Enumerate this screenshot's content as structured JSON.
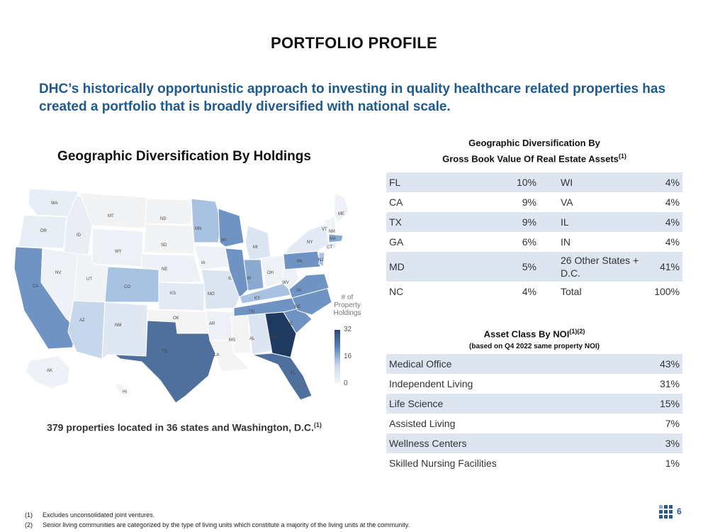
{
  "title": "PORTFOLIO PROFILE",
  "subtitle": "DHC’s historically opportunistic approach to investing in quality healthcare related properties has created a portfolio that is broadly diversified with national scale.",
  "map": {
    "title": "Geographic Diversification By Holdings",
    "caption": "379 properties located in 36 states and Washington, D.C.",
    "caption_note": "(1)",
    "legend": {
      "title_lines": [
        "# of",
        "Property",
        "Holdings"
      ],
      "ticks": [
        "32",
        "16",
        "0"
      ]
    },
    "state_labels": [
      "WA",
      "OR",
      "ID",
      "MT",
      "ND",
      "SD",
      "WY",
      "NE",
      "NV",
      "UT",
      "CO",
      "KS",
      "CA",
      "AZ",
      "NM",
      "OK",
      "TX",
      "MN",
      "IA",
      "MO",
      "AR",
      "LA",
      "WI",
      "IL",
      "MI",
      "IN",
      "OH",
      "KY",
      "TN",
      "MS",
      "AL",
      "GA",
      "FL",
      "SC",
      "NC",
      "VA",
      "WV",
      "PA",
      "NY",
      "VT",
      "NH",
      "ME",
      "MA",
      "CT",
      "NJ",
      "AK",
      "HI"
    ]
  },
  "geo_table": {
    "title_line1": "Geographic Diversification By",
    "title_line2": "Gross Book Value Of Real Estate Assets",
    "title_note": "(1)",
    "rows": [
      {
        "s1": "FL",
        "v1": "10%",
        "s2": "WI",
        "v2": "4%"
      },
      {
        "s1": "CA",
        "v1": "9%",
        "s2": "VA",
        "v2": "4%"
      },
      {
        "s1": "TX",
        "v1": "9%",
        "s2": "IL",
        "v2": "4%"
      },
      {
        "s1": "GA",
        "v1": "6%",
        "s2": "IN",
        "v2": "4%"
      },
      {
        "s1": "MD",
        "v1": "5%",
        "s2": "26 Other States + D.C.",
        "v2": "41%"
      },
      {
        "s1": "NC",
        "v1": "4%",
        "s2": "Total",
        "v2": "100%"
      }
    ]
  },
  "noi_table": {
    "title": "Asset Class By NOI",
    "title_note": "(1)(2)",
    "subtitle": "(based on Q4 2022 same property NOI)",
    "rows": [
      {
        "label": "Medical Office",
        "value": "43%"
      },
      {
        "label": "Independent Living",
        "value": "31%"
      },
      {
        "label": "Life Science",
        "value": "15%"
      },
      {
        "label": "Assisted Living",
        "value": "7%"
      },
      {
        "label": "Wellness Centers",
        "value": "3%"
      },
      {
        "label": "Skilled Nursing Facilities",
        "value": "1%"
      }
    ]
  },
  "footnotes": [
    {
      "n": "(1)",
      "text": "Excludes unconsolidated joint ventures."
    },
    {
      "n": "(2)",
      "text": "Senior living communities are categorized by the type of living units which constitute a majority of the living units at the community."
    }
  ],
  "page_number": "6",
  "colors": {
    "accent": "#1f5a8f",
    "row_alt": "#dde5f0",
    "map_dark": "#2c4a73",
    "map_light": "#eef2f7"
  }
}
